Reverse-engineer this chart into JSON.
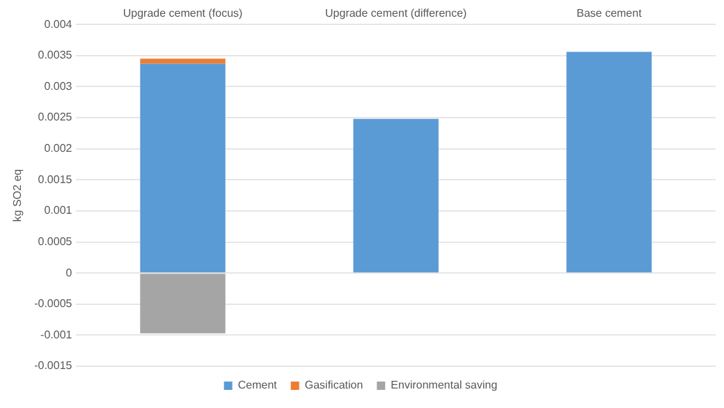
{
  "chart_data": {
    "type": "bar",
    "stacked": true,
    "ylabel": "kg SO2 eq",
    "categories": [
      "Upgrade cement (focus)",
      "Upgrade cement (difference)",
      "Base cement"
    ],
    "series": [
      {
        "name": "Cement",
        "color": "#5b9bd5",
        "values": [
          0.00337,
          0.00248,
          0.00356
        ]
      },
      {
        "name": "Gasification",
        "color": "#ed7d31",
        "values": [
          8e-05,
          null,
          null
        ]
      },
      {
        "name": "Environmental saving",
        "color": "#a5a5a5",
        "values": [
          -0.00097,
          null,
          null
        ]
      }
    ],
    "ylim": [
      -0.0015,
      0.004
    ],
    "yticks": [
      -0.0015,
      -0.001,
      -0.0005,
      0,
      0.0005,
      0.001,
      0.0015,
      0.002,
      0.0025,
      0.003,
      0.0035,
      0.004
    ],
    "grid": "y",
    "legend": "bottom"
  }
}
